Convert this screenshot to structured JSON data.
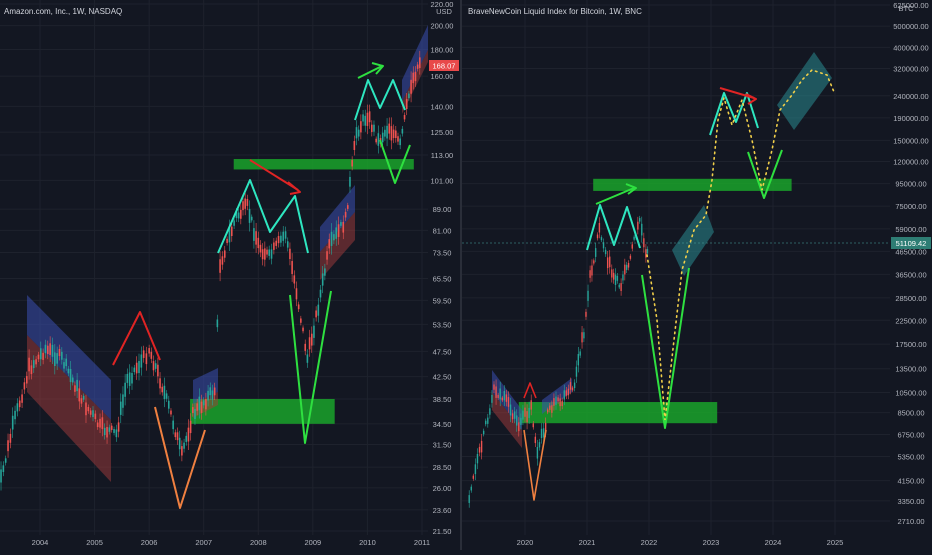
{
  "chart_data": [
    {
      "type": "candlestick",
      "title": "Amazon.com, Inc., 1W, NASDAQ",
      "unit_label": "USD",
      "y_scale": "log",
      "y_ticks": [
        220.0,
        200.0,
        180.0,
        160.0,
        140.0,
        125.0,
        113.0,
        101.0,
        89.0,
        81.0,
        73.5,
        65.5,
        59.5,
        53.5,
        47.5,
        42.5,
        38.5,
        34.5,
        31.5,
        28.5,
        26.0,
        23.6,
        21.5
      ],
      "y_tick_labels": [
        "220.00",
        "200.00",
        "180.00",
        "160.00",
        "140.00",
        "125.00",
        "113.00",
        "101.00",
        "89.00",
        "81.00",
        "73.50",
        "65.50",
        "59.50",
        "53.50",
        "47.50",
        "42.50",
        "38.50",
        "34.50",
        "31.50",
        "28.50",
        "26.00",
        "23.60",
        "21.50"
      ],
      "x_ticks": [
        "2004",
        "2005",
        "2006",
        "2007",
        "2008",
        "2009",
        "2010",
        "2011"
      ],
      "last_price": "168.07",
      "price_path": [
        [
          "2003.2",
          24.5
        ],
        [
          "2003.5",
          34
        ],
        [
          "2003.8",
          44
        ],
        [
          "2004.1",
          48
        ],
        [
          "2004.4",
          46
        ],
        [
          "2004.8",
          38
        ],
        [
          "2005.1",
          34
        ],
        [
          "2005.4",
          33
        ],
        [
          "2005.6",
          42
        ],
        [
          "2005.9",
          46
        ],
        [
          "2006.0",
          48
        ],
        [
          "2006.2",
          42
        ],
        [
          "2006.4",
          36
        ],
        [
          "2006.6",
          30
        ],
        [
          "2006.8",
          36
        ],
        [
          "2007.0",
          38
        ],
        [
          "2007.2",
          40
        ],
        [
          "2007.3",
          70
        ],
        [
          "2007.6",
          86
        ],
        [
          "2007.8",
          90
        ],
        [
          "2008.0",
          76
        ],
        [
          "2008.2",
          72
        ],
        [
          "2008.5",
          80
        ],
        [
          "2008.7",
          62
        ],
        [
          "2008.9",
          46
        ],
        [
          "2009.1",
          58
        ],
        [
          "2009.3",
          75
        ],
        [
          "2009.6",
          85
        ],
        [
          "2009.8",
          125
        ],
        [
          "2010.0",
          135
        ],
        [
          "2010.2",
          120
        ],
        [
          "2010.4",
          128
        ],
        [
          "2010.6",
          118
        ],
        [
          "2010.8",
          155
        ],
        [
          "2011.0",
          175
        ]
      ],
      "zones": [
        {
          "kind": "support",
          "color": "#1aa32a",
          "from": "2006.75",
          "to": "2009.4",
          "low": 34.5,
          "high": 38.5
        },
        {
          "kind": "support",
          "color": "#1aa32a",
          "from": "2007.55",
          "to": "2010.85",
          "low": 106,
          "high": 111
        }
      ]
    },
    {
      "type": "candlestick",
      "title": "BraveNewCoin Liquid Index for Bitcoin, 1W, BNC",
      "unit_label": "BTC",
      "y_scale": "log",
      "y_ticks": [
        625000,
        500000,
        400000,
        320000,
        240000,
        190000,
        150000,
        120000,
        95000,
        75000,
        59000,
        46500,
        36500,
        28500,
        22500,
        17500,
        13500,
        10500,
        8500,
        6750,
        5350,
        4150,
        3350,
        2710
      ],
      "y_tick_labels": [
        "625000.00",
        "500000.00",
        "400000.00",
        "320000.00",
        "240000.00",
        "190000.00",
        "150000.00",
        "120000.00",
        "95000.00",
        "75000.00",
        "59000.00",
        "46500.00",
        "36500.00",
        "28500.00",
        "22500.00",
        "17500.00",
        "13500.00",
        "10500.00",
        "8500.00",
        "6750.00",
        "5350.00",
        "4150.00",
        "3350.00",
        "2710.00"
      ],
      "x_ticks": [
        "2020",
        "2021",
        "2022",
        "2023",
        "2024",
        "2025"
      ],
      "last_price": "51109.42",
      "price_path": [
        [
          "2019.1",
          3500
        ],
        [
          "2019.3",
          6000
        ],
        [
          "2019.5",
          11000
        ],
        [
          "2019.7",
          9500
        ],
        [
          "2019.9",
          7500
        ],
        [
          "2020.1",
          9000
        ],
        [
          "2020.2",
          5500
        ],
        [
          "2020.4",
          9000
        ],
        [
          "2020.6",
          9500
        ],
        [
          "2020.8",
          11500
        ],
        [
          "2020.95",
          20000
        ],
        [
          "2021.05",
          35000
        ],
        [
          "2021.2",
          60000
        ],
        [
          "2021.4",
          37000
        ],
        [
          "2021.55",
          33000
        ],
        [
          "2021.7",
          45000
        ],
        [
          "2021.85",
          65000
        ],
        [
          "2021.95",
          48000
        ],
        [
          "2022.0",
          43000
        ]
      ],
      "zones": [
        {
          "kind": "support",
          "color": "#1aa32a",
          "from": "2019.9",
          "to": "2023.1",
          "low": 7600,
          "high": 9500
        },
        {
          "kind": "resistance",
          "color": "#1aa32a",
          "from": "2021.1",
          "to": "2024.3",
          "low": 88000,
          "high": 100000
        }
      ]
    }
  ]
}
